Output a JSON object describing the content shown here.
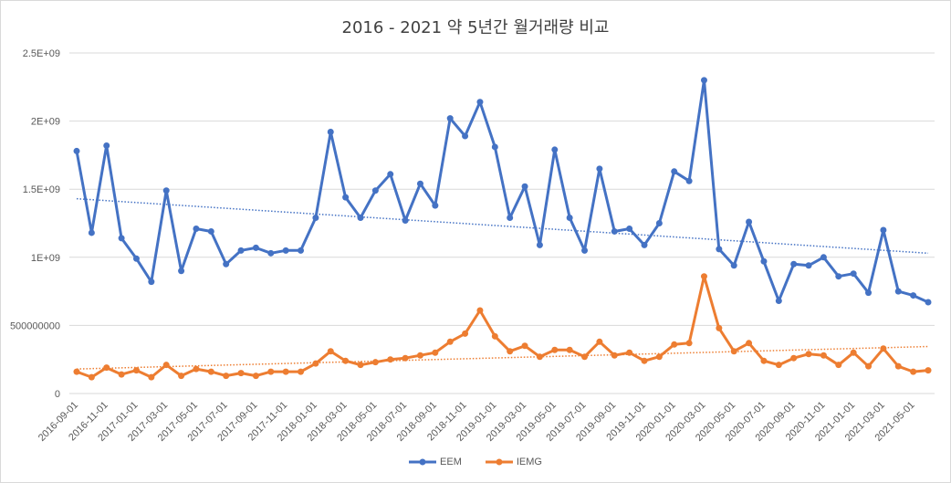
{
  "chart_data": {
    "type": "line",
    "title": "2016 - 2021 약 5년간 월거래량 비교",
    "xlabel": "",
    "ylabel": "",
    "ylim": [
      0,
      2500000000
    ],
    "y_ticks": [
      0,
      500000000,
      1000000000,
      1500000000,
      2000000000,
      2500000000
    ],
    "y_tick_labels": [
      "0",
      "500000000",
      "1E+09",
      "1.5E+09",
      "2E+09",
      "2.5E+09"
    ],
    "x_tick_labels": [
      "2016-09-01",
      "2016-11-01",
      "2017-01-01",
      "2017-03-01",
      "2017-05-01",
      "2017-07-01",
      "2017-09-01",
      "2017-11-01",
      "2018-01-01",
      "2018-03-01",
      "2018-05-01",
      "2018-07-01",
      "2018-09-01",
      "2018-11-01",
      "2019-01-01",
      "2019-03-01",
      "2019-05-01",
      "2019-07-01",
      "2019-09-01",
      "2019-11-01",
      "2020-01-01",
      "2020-03-01",
      "2020-05-01",
      "2020-07-01",
      "2020-09-01",
      "2020-11-01",
      "2021-01-01",
      "2021-03-01",
      "2021-05-01"
    ],
    "grid": true,
    "legend_position": "bottom",
    "series": [
      {
        "name": "EEM",
        "color": "#4472c4",
        "trendline": [
          1430000000,
          1030000000
        ],
        "values": [
          1780000000,
          1180000000,
          1820000000,
          1140000000,
          990000000,
          820000000,
          1490000000,
          900000000,
          1210000000,
          1190000000,
          950000000,
          1050000000,
          1070000000,
          1030000000,
          1050000000,
          1050000000,
          1290000000,
          1920000000,
          1440000000,
          1290000000,
          1490000000,
          1610000000,
          1270000000,
          1540000000,
          1380000000,
          2020000000,
          1890000000,
          2140000000,
          1810000000,
          1290000000,
          1520000000,
          1090000000,
          1790000000,
          1290000000,
          1050000000,
          1650000000,
          1190000000,
          1210000000,
          1090000000,
          1250000000,
          1630000000,
          1560000000,
          2300000000,
          1060000000,
          940000000,
          1260000000,
          970000000,
          680000000,
          950000000,
          940000000,
          1000000000,
          860000000,
          880000000,
          740000000,
          1200000000,
          750000000,
          720000000,
          670000000
        ]
      },
      {
        "name": "IEMG",
        "color": "#ed7d31",
        "trendline": [
          180000000,
          345000000
        ],
        "values": [
          160000000,
          120000000,
          190000000,
          140000000,
          170000000,
          120000000,
          210000000,
          130000000,
          180000000,
          160000000,
          130000000,
          150000000,
          130000000,
          160000000,
          160000000,
          160000000,
          220000000,
          310000000,
          240000000,
          210000000,
          230000000,
          250000000,
          260000000,
          280000000,
          300000000,
          380000000,
          440000000,
          610000000,
          420000000,
          310000000,
          350000000,
          270000000,
          320000000,
          320000000,
          270000000,
          380000000,
          280000000,
          300000000,
          240000000,
          270000000,
          360000000,
          370000000,
          860000000,
          480000000,
          310000000,
          370000000,
          240000000,
          210000000,
          260000000,
          290000000,
          280000000,
          210000000,
          300000000,
          200000000,
          330000000,
          200000000,
          160000000,
          170000000
        ]
      }
    ]
  }
}
